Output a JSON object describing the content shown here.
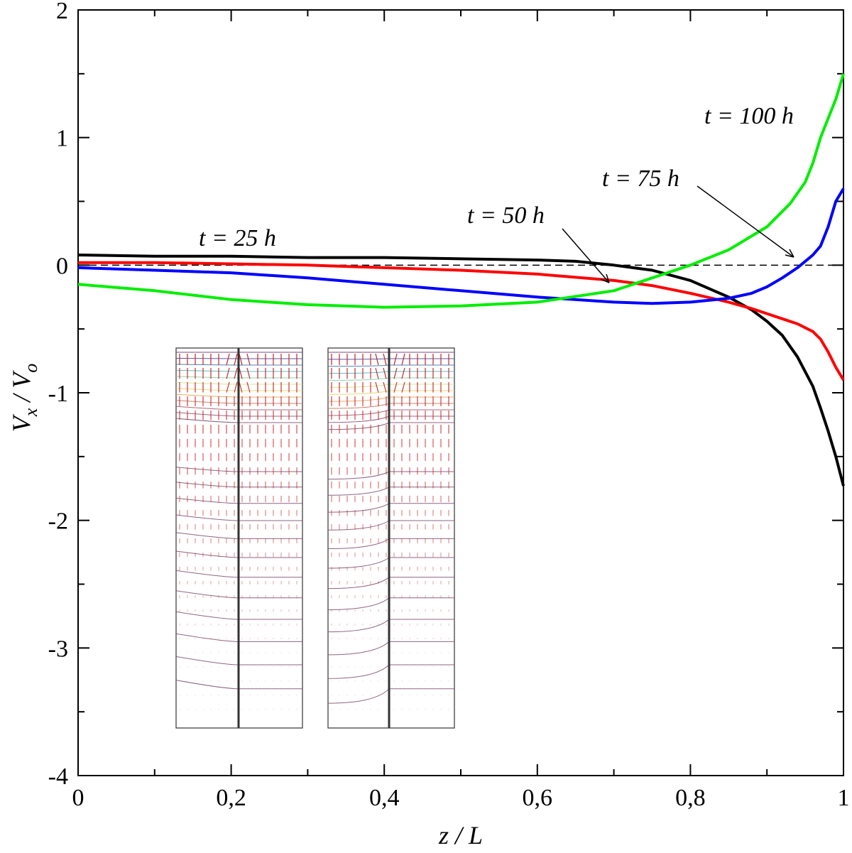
{
  "chart_data": {
    "type": "line",
    "xlabel": "z / L",
    "ylabel": {
      "main": "V",
      "sub1": "x",
      "sep": " / V",
      "sub2": "o"
    },
    "xlim": [
      0,
      1
    ],
    "ylim": [
      -4,
      2
    ],
    "xticks": [
      "0",
      "0,2",
      "0,4",
      "0,6",
      "0,8",
      "1"
    ],
    "yticks": [
      "2",
      "1",
      "0",
      "-1",
      "-2",
      "-3",
      "-4"
    ],
    "grid": false,
    "reference_line": {
      "y": 0,
      "style": "dashed",
      "color": "#000000"
    },
    "series": [
      {
        "name": "t = 25 h",
        "color": "#000000",
        "x": [
          0,
          0.1,
          0.2,
          0.3,
          0.4,
          0.5,
          0.6,
          0.65,
          0.7,
          0.75,
          0.8,
          0.85,
          0.88,
          0.9,
          0.92,
          0.94,
          0.96,
          0.97,
          0.98,
          0.99,
          1.0
        ],
        "y": [
          0.08,
          0.07,
          0.07,
          0.06,
          0.06,
          0.05,
          0.04,
          0.03,
          0.0,
          -0.04,
          -0.12,
          -0.25,
          -0.35,
          -0.44,
          -0.55,
          -0.72,
          -0.95,
          -1.12,
          -1.3,
          -1.5,
          -1.73
        ]
      },
      {
        "name": "t = 50 h",
        "color": "#ff0000",
        "x": [
          0,
          0.1,
          0.2,
          0.3,
          0.4,
          0.5,
          0.6,
          0.7,
          0.75,
          0.8,
          0.85,
          0.88,
          0.9,
          0.92,
          0.94,
          0.96,
          0.97,
          0.98,
          0.99,
          1.0
        ],
        "y": [
          0.02,
          0.02,
          0.01,
          0.0,
          -0.02,
          -0.04,
          -0.07,
          -0.12,
          -0.16,
          -0.22,
          -0.29,
          -0.34,
          -0.38,
          -0.42,
          -0.46,
          -0.52,
          -0.58,
          -0.68,
          -0.8,
          -0.9
        ]
      },
      {
        "name": "t = 75 h",
        "color": "#0000ff",
        "x": [
          0,
          0.1,
          0.2,
          0.3,
          0.4,
          0.5,
          0.6,
          0.7,
          0.75,
          0.8,
          0.85,
          0.88,
          0.9,
          0.92,
          0.94,
          0.96,
          0.97,
          0.98,
          0.99,
          1.0
        ],
        "y": [
          -0.02,
          -0.04,
          -0.06,
          -0.1,
          -0.15,
          -0.2,
          -0.25,
          -0.29,
          -0.3,
          -0.29,
          -0.26,
          -0.22,
          -0.17,
          -0.1,
          -0.02,
          0.08,
          0.15,
          0.3,
          0.5,
          0.6
        ]
      },
      {
        "name": "t = 100 h",
        "color": "#00ee00",
        "x": [
          0,
          0.1,
          0.2,
          0.3,
          0.4,
          0.5,
          0.6,
          0.7,
          0.75,
          0.8,
          0.85,
          0.9,
          0.93,
          0.95,
          0.96,
          0.97,
          0.98,
          0.99,
          1.0
        ],
        "y": [
          -0.15,
          -0.2,
          -0.27,
          -0.31,
          -0.33,
          -0.32,
          -0.29,
          -0.2,
          -0.1,
          0.0,
          0.12,
          0.3,
          0.48,
          0.65,
          0.8,
          1.0,
          1.15,
          1.3,
          1.5
        ]
      }
    ],
    "annotations": [
      {
        "text": "t = 25 h"
      },
      {
        "text": "t = 50 h"
      },
      {
        "text": "t = 75 h"
      },
      {
        "text": "t = 100 h"
      }
    ],
    "inset": {
      "description_visible": false,
      "vector_color": "#cc2222"
    }
  }
}
